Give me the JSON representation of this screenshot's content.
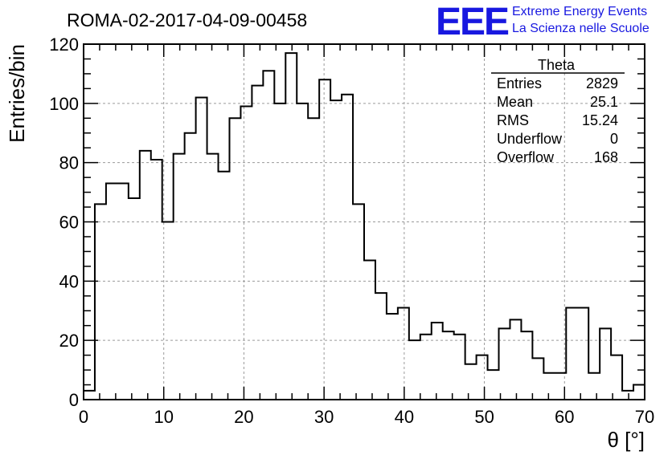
{
  "header": {
    "run_title": "ROMA-02-2017-04-09-00458",
    "logo_mark": "EEE",
    "logo_line1": "Extreme Energy Events",
    "logo_line2": "La Scienza nelle Scuole"
  },
  "colors": {
    "logo": "#1818e0",
    "histogram": "#000000",
    "grid": "#9a9a9a"
  },
  "stats_box": {
    "name": "Theta",
    "rows": [
      {
        "label": "Entries",
        "value": "2829"
      },
      {
        "label": "Mean",
        "value": "25.1"
      },
      {
        "label": "RMS",
        "value": "15.24"
      },
      {
        "label": "Underflow",
        "value": "0"
      },
      {
        "label": "Overflow",
        "value": "168"
      }
    ]
  },
  "chart_data": {
    "type": "histogram",
    "xlabel": "θ [°]",
    "ylabel": "Entries/bin",
    "xlim": [
      0,
      70
    ],
    "ylim": [
      0,
      120
    ],
    "xticks": [
      0,
      10,
      20,
      30,
      40,
      50,
      60,
      70
    ],
    "yticks": [
      0,
      20,
      40,
      60,
      80,
      100,
      120
    ],
    "grid": true,
    "legend_position": "top-right",
    "bin_width": 1.4,
    "bin_edges_start": 0,
    "values": [
      3,
      66,
      73,
      73,
      68,
      84,
      81,
      60,
      83,
      90,
      102,
      83,
      77,
      95,
      99,
      106,
      111,
      100,
      117,
      100,
      95,
      108,
      101,
      103,
      66,
      47,
      36,
      29,
      31,
      20,
      22,
      26,
      23,
      22,
      12,
      15,
      10,
      24,
      27,
      23,
      14,
      9,
      9,
      31,
      31,
      9,
      24,
      15,
      3,
      5
    ]
  }
}
